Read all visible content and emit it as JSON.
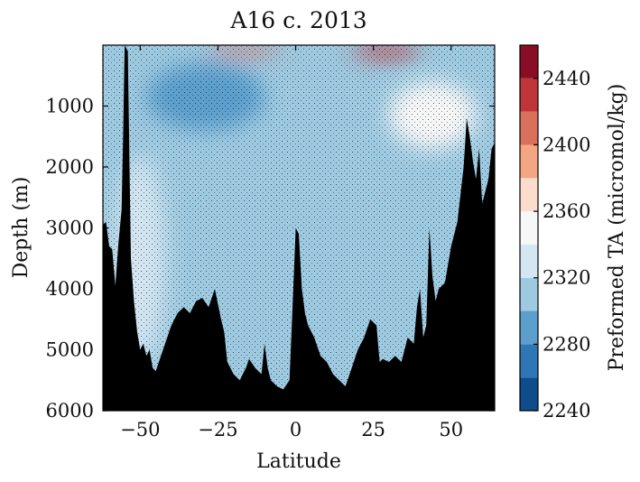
{
  "chart_data": {
    "type": "heatmap",
    "title": "A16 c. 2013",
    "xlabel": "Latitude",
    "ylabel": "Depth (m)",
    "colorbar_label": "Preformed TA (micromol/kg)",
    "xlim": [
      -62,
      64
    ],
    "ylim": [
      6000,
      0
    ],
    "x_ticks": [
      -50,
      -25,
      0,
      25,
      50
    ],
    "x_tick_labels": [
      "−50",
      "−25",
      "0",
      "25",
      "50"
    ],
    "y_ticks": [
      1000,
      2000,
      3000,
      4000,
      5000,
      6000
    ],
    "y_tick_labels": [
      "1000",
      "2000",
      "3000",
      "4000",
      "5000",
      "6000"
    ],
    "levels": [
      2240,
      2260,
      2280,
      2300,
      2320,
      2340,
      2360,
      2380,
      2400,
      2420,
      2440,
      2460
    ],
    "colorbar_ticks": [
      2240,
      2280,
      2320,
      2360,
      2400,
      2440
    ],
    "colorbar_tick_labels": [
      "2240",
      "2280",
      "2320",
      "2360",
      "2400",
      "2440"
    ],
    "colors": [
      "#0f4c8c",
      "#2f76b6",
      "#5c9fcd",
      "#9ecae1",
      "#d4e6f2",
      "#f7f7f7",
      "#fcdccb",
      "#f4a582",
      "#d8705c",
      "#c0353a",
      "#8a0d26"
    ],
    "background_value": 2310,
    "field_regions": [
      {
        "description": "deep intermediate water lens",
        "lat_range": [
          -48,
          -10
        ],
        "depth_range": [
          300,
          1400
        ],
        "value": 2290
      },
      {
        "description": "southern deep water band",
        "lat_range": [
          -58,
          -42
        ],
        "depth_range": [
          1800,
          5200
        ],
        "value": 2330
      },
      {
        "description": "northern intermediate water",
        "lat_range": [
          30,
          58
        ],
        "depth_range": [
          600,
          1700
        ],
        "value": 2340
      },
      {
        "description": "north surface layer",
        "lat_range": [
          18,
          40
        ],
        "depth_range": [
          0,
          200
        ],
        "value": 2420
      },
      {
        "description": "south surface layer",
        "lat_range": [
          -28,
          -5
        ],
        "depth_range": [
          0,
          150
        ],
        "value": 2410
      }
    ],
    "seafloor_depth": [
      [
        -62,
        2950
      ],
      [
        -61,
        2900
      ],
      [
        -60,
        3300
      ],
      [
        -59,
        3350
      ],
      [
        -58,
        3950
      ],
      [
        -57,
        3250
      ],
      [
        -56,
        2700
      ],
      [
        -55.5,
        1500
      ],
      [
        -55,
        0
      ],
      [
        -54,
        100
      ],
      [
        -53.5,
        1800
      ],
      [
        -53,
        3500
      ],
      [
        -52,
        4200
      ],
      [
        -51,
        4700
      ],
      [
        -50,
        5000
      ],
      [
        -49,
        4900
      ],
      [
        -48,
        5100
      ],
      [
        -47,
        5000
      ],
      [
        -46,
        5300
      ],
      [
        -45,
        5350
      ],
      [
        -44,
        5200
      ],
      [
        -42,
        4900
      ],
      [
        -40,
        4600
      ],
      [
        -38,
        4400
      ],
      [
        -36,
        4300
      ],
      [
        -34,
        4400
      ],
      [
        -32,
        4200
      ],
      [
        -30,
        4150
      ],
      [
        -28,
        4300
      ],
      [
        -26,
        4000
      ],
      [
        -24,
        4500
      ],
      [
        -23,
        4700
      ],
      [
        -22,
        5200
      ],
      [
        -20,
        5400
      ],
      [
        -18,
        5500
      ],
      [
        -16,
        5300
      ],
      [
        -15,
        5150
      ],
      [
        -13,
        5300
      ],
      [
        -11,
        5400
      ],
      [
        -10,
        4900
      ],
      [
        -9,
        5300
      ],
      [
        -8,
        5500
      ],
      [
        -6,
        5600
      ],
      [
        -4,
        5650
      ],
      [
        -2,
        5500
      ],
      [
        -1,
        4300
      ],
      [
        0,
        3000
      ],
      [
        1,
        3100
      ],
      [
        2,
        4000
      ],
      [
        3,
        4400
      ],
      [
        4,
        4600
      ],
      [
        6,
        4800
      ],
      [
        8,
        5100
      ],
      [
        10,
        5200
      ],
      [
        12,
        5400
      ],
      [
        14,
        5500
      ],
      [
        16,
        5600
      ],
      [
        18,
        5300
      ],
      [
        20,
        5000
      ],
      [
        22,
        4800
      ],
      [
        24,
        4500
      ],
      [
        26,
        4600
      ],
      [
        27,
        5200
      ],
      [
        28,
        5150
      ],
      [
        30,
        5200
      ],
      [
        32,
        5100
      ],
      [
        34,
        5200
      ],
      [
        36,
        4800
      ],
      [
        38,
        4900
      ],
      [
        39,
        4300
      ],
      [
        40,
        4000
      ],
      [
        41,
        4800
      ],
      [
        42,
        4600
      ],
      [
        43,
        3000
      ],
      [
        44,
        3800
      ],
      [
        45,
        4200
      ],
      [
        46,
        4000
      ],
      [
        48,
        3900
      ],
      [
        50,
        3300
      ],
      [
        52,
        2900
      ],
      [
        54,
        2000
      ],
      [
        55,
        1200
      ],
      [
        56,
        1500
      ],
      [
        57,
        1900
      ],
      [
        58,
        2200
      ],
      [
        59,
        1700
      ],
      [
        60,
        2600
      ],
      [
        62,
        2200
      ],
      [
        63,
        1700
      ],
      [
        64,
        1600
      ]
    ],
    "grid": false
  }
}
